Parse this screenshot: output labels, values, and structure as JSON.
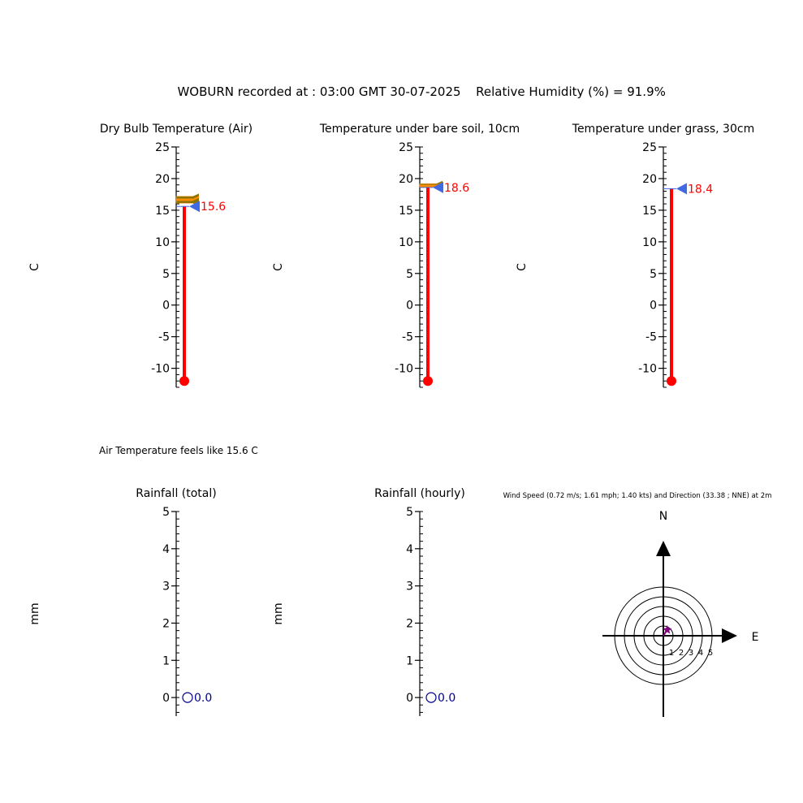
{
  "header": {
    "title": "WOBURN recorded at : 03:00 GMT  30-07-2025",
    "humidity": "Relative Humidity (%) = 91.9%"
  },
  "feels_like": "Air Temperature feels like 15.6 C",
  "wind_title": "Wind Speed (0.72 m/s; 1.61 mph; 1.40 kts) and Direction (33.38 ; NNE) at 2m",
  "colors": {
    "mercury": "#ff0000",
    "pointer": "#4169e1",
    "history_a": "#8b7500",
    "history_b": "#ff8c00",
    "rain": "#00008b",
    "wind_marker": "#800080",
    "axis": "#000000"
  },
  "chart_data": [
    {
      "type": "thermometer",
      "title": "Dry Bulb Temperature (Air)",
      "ylabel": "C",
      "ylim": [
        -13,
        25
      ],
      "ticks": [
        "25",
        "20",
        "15",
        "10",
        "5",
        "0",
        "-5",
        "-10"
      ],
      "value": 15.6,
      "value_label": "15.6",
      "history": [
        17.0,
        16.6,
        16.3
      ]
    },
    {
      "type": "thermometer",
      "title": "Temperature under bare soil, 10cm",
      "ylabel": "C",
      "ylim": [
        -13,
        25
      ],
      "ticks": [
        "25",
        "20",
        "15",
        "10",
        "5",
        "0",
        "-5",
        "-10"
      ],
      "value": 18.6,
      "value_label": "18.6",
      "history": [
        19.0,
        18.8
      ]
    },
    {
      "type": "thermometer",
      "title": "Temperature under grass, 30cm",
      "ylabel": "C",
      "ylim": [
        -13,
        25
      ],
      "ticks": [
        "25",
        "20",
        "15",
        "10",
        "5",
        "0",
        "-5",
        "-10"
      ],
      "value": 18.4,
      "value_label": "18.4",
      "history": []
    },
    {
      "type": "gauge",
      "title": "Rainfall (total)",
      "ylabel": "mm",
      "ylim": [
        -0.5,
        5
      ],
      "ticks": [
        "5",
        "4",
        "3",
        "2",
        "1",
        "0"
      ],
      "value": 0.0,
      "value_label": "0.0"
    },
    {
      "type": "gauge",
      "title": "Rainfall (hourly)",
      "ylabel": "mm",
      "ylim": [
        -0.5,
        5
      ],
      "ticks": [
        "5",
        "4",
        "3",
        "2",
        "1",
        "0"
      ],
      "value": 0.0,
      "value_label": "0.0"
    },
    {
      "type": "polar",
      "north_label": "N",
      "east_label": "E",
      "ring_labels": [
        "1",
        "2",
        "3",
        "4",
        "5"
      ],
      "speed": 0.72,
      "direction_deg": 33.38
    }
  ]
}
